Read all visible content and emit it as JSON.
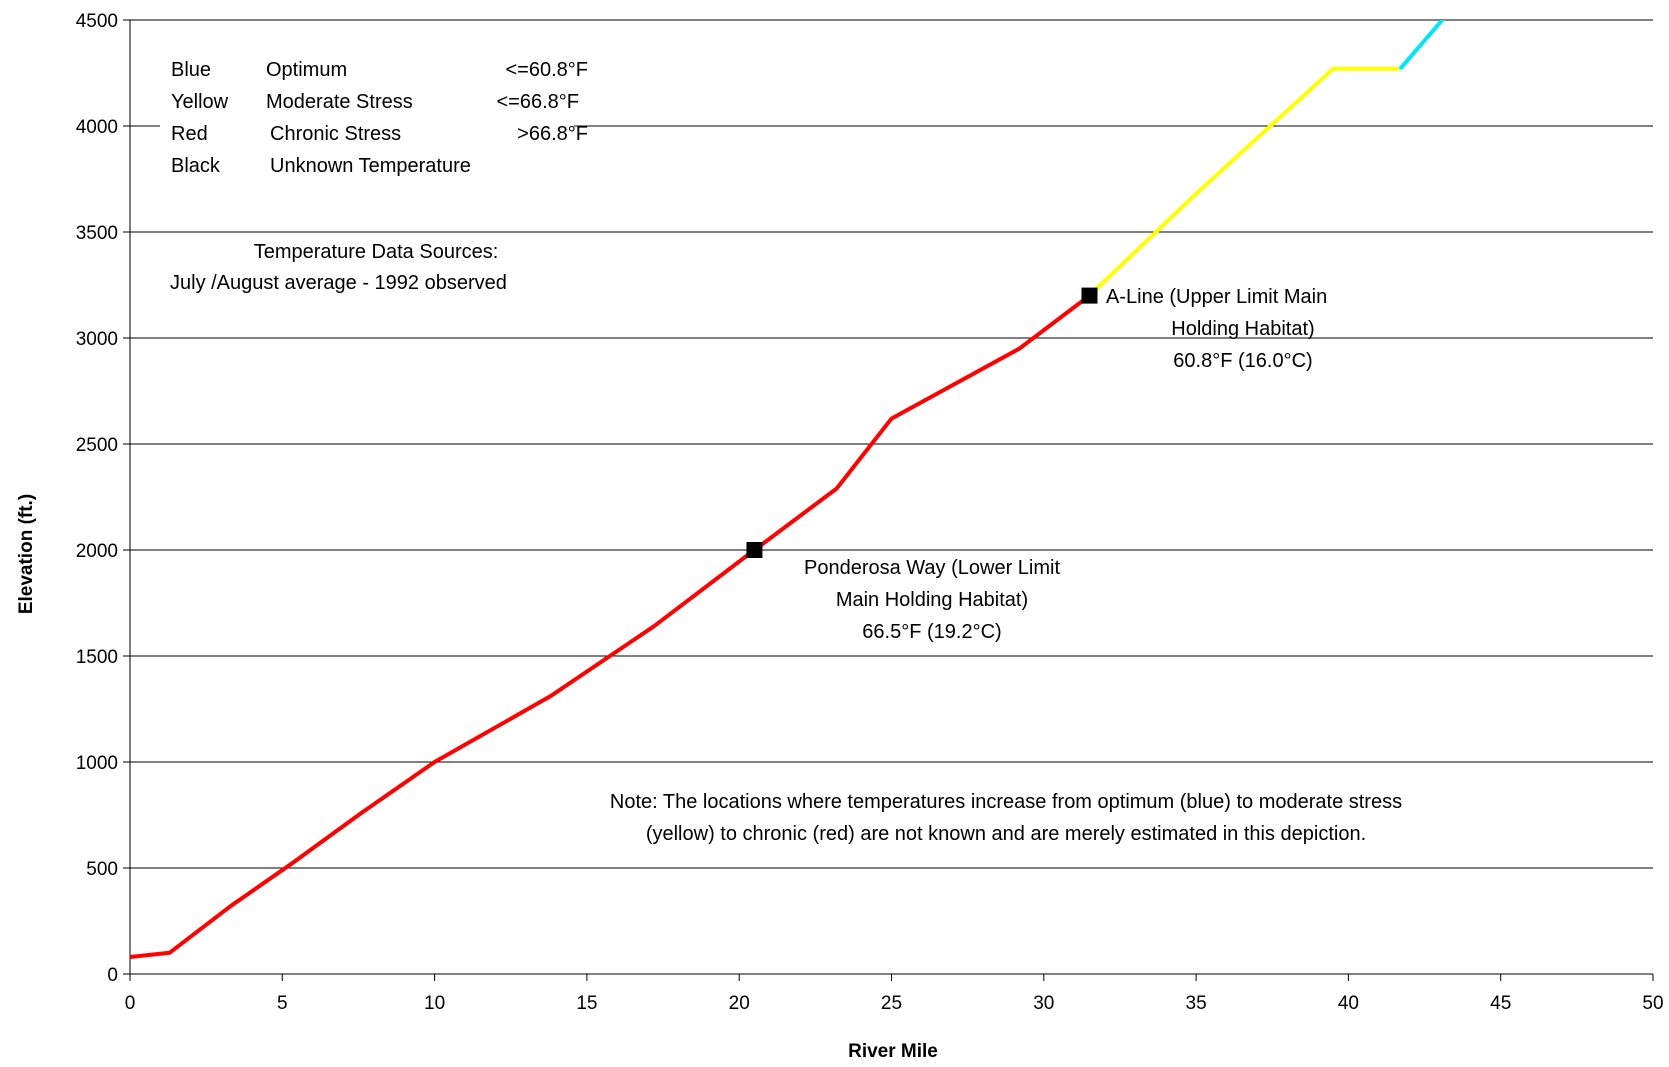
{
  "chart_data": {
    "type": "line",
    "title": "",
    "xlabel": "River Mile",
    "ylabel": "Elevation (ft.)",
    "xlim": [
      0,
      50
    ],
    "ylim": [
      0,
      4500
    ],
    "xticks": [
      0,
      5,
      10,
      15,
      20,
      25,
      30,
      35,
      40,
      45,
      50
    ],
    "yticks": [
      0,
      500,
      1000,
      1500,
      2000,
      2500,
      3000,
      3500,
      4000,
      4500
    ],
    "grid": "horizontal",
    "series": [
      {
        "color": "#ff0000",
        "x": [
          0,
          1.3,
          3.3,
          5.3,
          7.6,
          10.0,
          13.8,
          17.2,
          20.5,
          23.2,
          25.0,
          29.2,
          31.5
        ],
        "y": [
          80,
          100,
          320,
          520,
          760,
          1000,
          1310,
          1640,
          2000,
          2290,
          2620,
          2950,
          3200
        ]
      },
      {
        "color": "#ffff00",
        "x": [
          31.5,
          35.0,
          39.5,
          41.7
        ],
        "y": [
          3200,
          3680,
          4270,
          4270
        ]
      },
      {
        "color": "#00e5ff",
        "x": [
          41.7,
          43.2
        ],
        "y": [
          4270,
          4520
        ]
      }
    ],
    "markers": [
      {
        "x": 20.5,
        "y": 2000,
        "label_lines": [
          "Ponderosa Way (Lower Limit",
          "Main Holding Habitat)",
          "66.5°F (19.2°C)"
        ]
      },
      {
        "x": 31.5,
        "y": 3200,
        "label_lines": [
          "A-Line (Upper Limit Main",
          "Holding Habitat)",
          "60.8°F (16.0°C)"
        ]
      }
    ],
    "legend": [
      {
        "color": "Blue",
        "label": "Optimum",
        "range": "<=60.8°F"
      },
      {
        "color": "Yellow",
        "label": "Moderate Stress",
        "range": "<=66.8°F"
      },
      {
        "color": "Red",
        "label": "Chronic Stress",
        "range": ">66.8°F"
      },
      {
        "color": "Black",
        "label": "Unknown Temperature",
        "range": ""
      }
    ],
    "legend_placement": "top-left",
    "sources": [
      "Temperature Data Sources:",
      "July /August average - 1992 observed"
    ],
    "note": [
      "Note:  The locations where temperatures increase from optimum (blue) to moderate stress",
      "(yellow) to chronic (red) are not known and are merely estimated in this depiction."
    ]
  }
}
